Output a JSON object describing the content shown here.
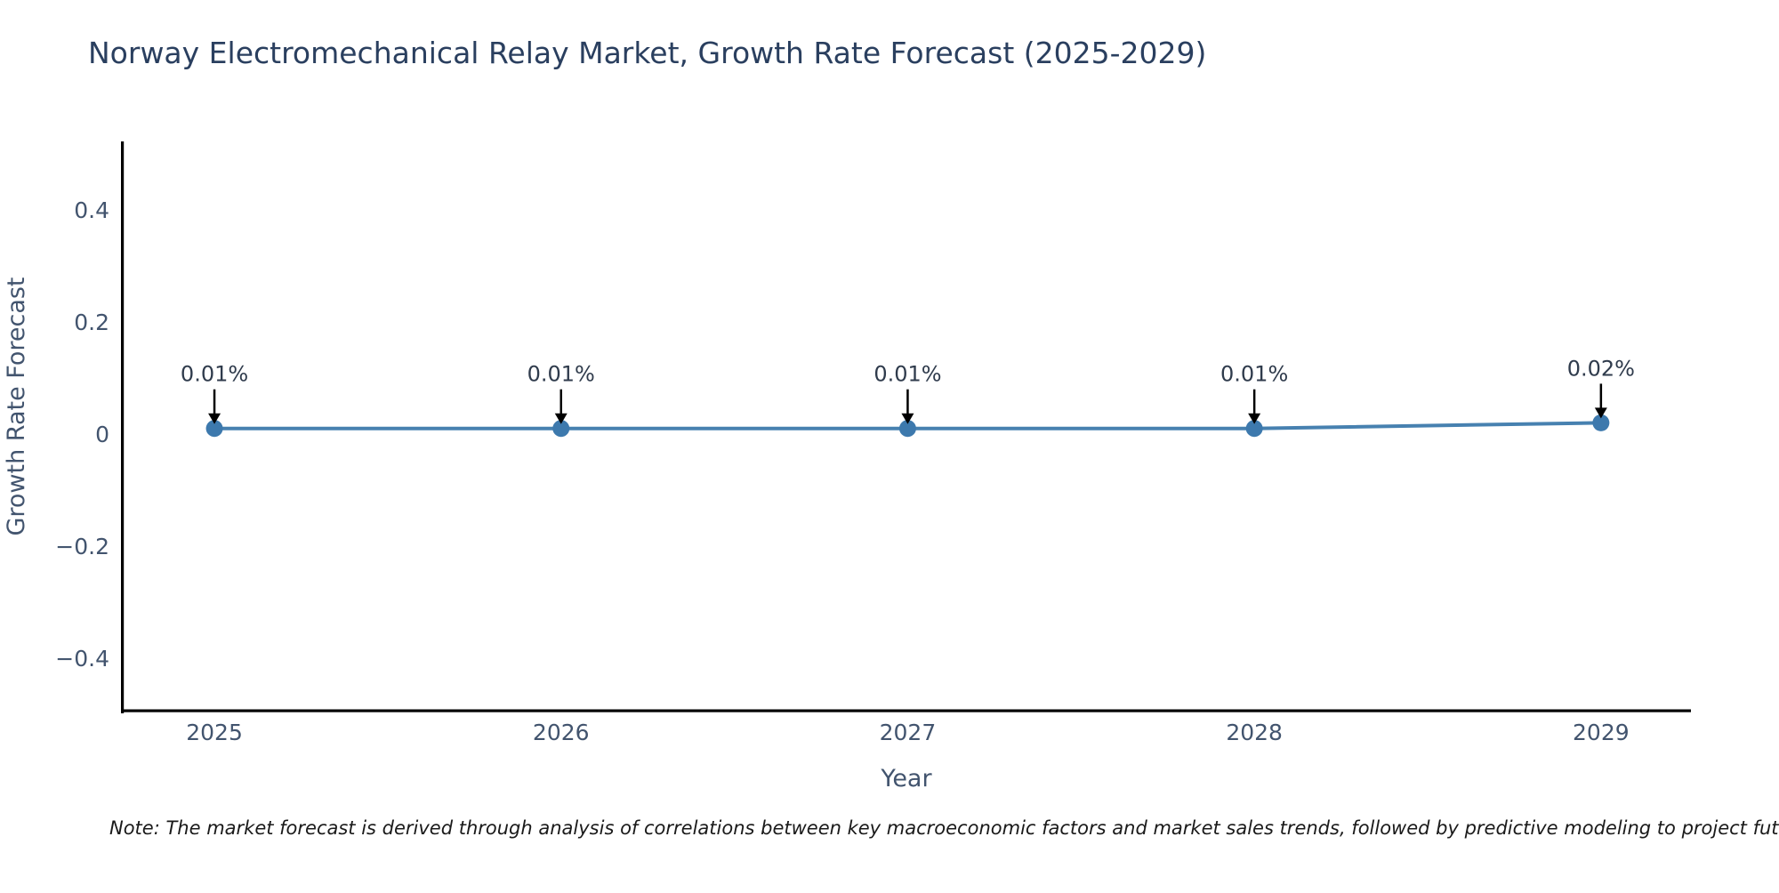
{
  "chart_data": {
    "type": "line",
    "title": "Norway Electromechanical Relay Market, Growth Rate Forecast (2025-2029)",
    "xlabel": "Year",
    "ylabel": "Growth Rate Forecast",
    "x": [
      2025,
      2026,
      2027,
      2028,
      2029
    ],
    "xticks": [
      "2025",
      "2026",
      "2027",
      "2028",
      "2029"
    ],
    "values": [
      0.01,
      0.01,
      0.01,
      0.01,
      0.02
    ],
    "annotations": [
      "0.01%",
      "0.01%",
      "0.01%",
      "0.01%",
      "0.02%"
    ],
    "yticks": [
      0.4,
      0.2,
      0,
      -0.2,
      -0.4
    ],
    "ylim": [
      -0.4952,
      0.5206
    ],
    "xlim": [
      2024.733,
      2029.257
    ],
    "grid": false,
    "legend": null,
    "colors": {
      "line": "#4781b0",
      "marker": "#3d79ad",
      "arrow": "#000000",
      "spine": "#000000",
      "title_text": "#2a3f5f",
      "tick_text": "#42546e"
    }
  },
  "footer": {
    "note": "Note: The market forecast is derived through analysis of correlations between key macroeconomic factors and market sales trends, followed by predictive modeling to project future sa"
  }
}
